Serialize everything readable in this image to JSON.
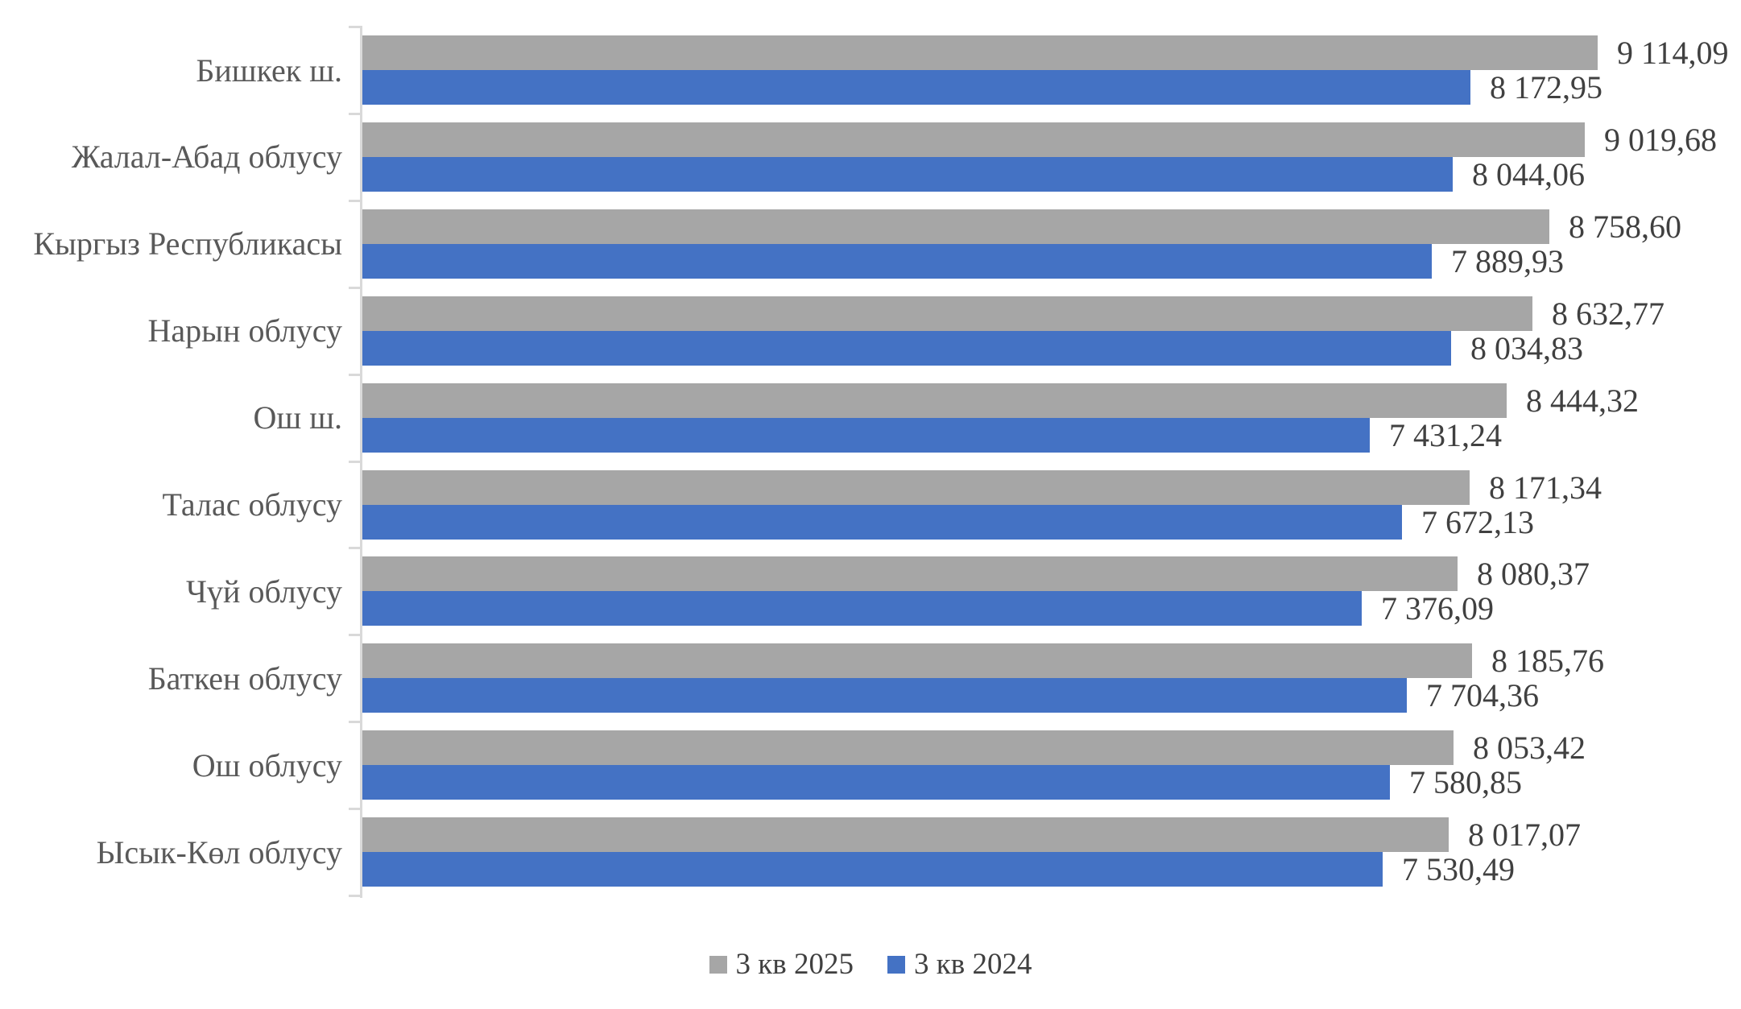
{
  "chart_data": {
    "type": "bar",
    "orientation": "horizontal",
    "title": "",
    "xlabel": "",
    "ylabel": "",
    "grid": false,
    "xlim": [
      0,
      10000
    ],
    "legend_position": "bottom",
    "axis_color": "#d9d9d9",
    "category_label_color": "#595959",
    "value_label_color": "#404040",
    "categories": [
      "Бишкек ш.",
      "Жалал-Абад облусу",
      "Кыргыз Республикасы",
      "Нарын облусу",
      "Ош ш.",
      "Талас облусу",
      "Чүй облусу",
      "Баткен облусу",
      "Ош облусу",
      "Ысык-Көл облусу"
    ],
    "series": [
      {
        "name": "3 кв 2025",
        "color": "#a6a6a6",
        "values": [
          9114.09,
          9019.68,
          8758.6,
          8632.77,
          8444.32,
          8171.34,
          8080.37,
          8185.76,
          8053.42,
          8017.07
        ],
        "labels": [
          "9 114,09",
          "9 019,68",
          "8 758,60",
          "8 632,77",
          "8 444,32",
          "8 171,34",
          "8 080,37",
          "8 185,76",
          "8 053,42",
          "8 017,07"
        ]
      },
      {
        "name": "3 кв 2024",
        "color": "#4472c4",
        "values": [
          8172.95,
          8044.06,
          7889.93,
          8034.83,
          7431.24,
          7672.13,
          7376.09,
          7704.36,
          7580.85,
          7530.49
        ],
        "labels": [
          "8 172,95",
          "8 044,06",
          "7 889,93",
          "8 034,83",
          "7 431,24",
          "7 672,13",
          "7 376,09",
          "7 704,36",
          "7 580,85",
          "7 530,49"
        ]
      }
    ]
  }
}
